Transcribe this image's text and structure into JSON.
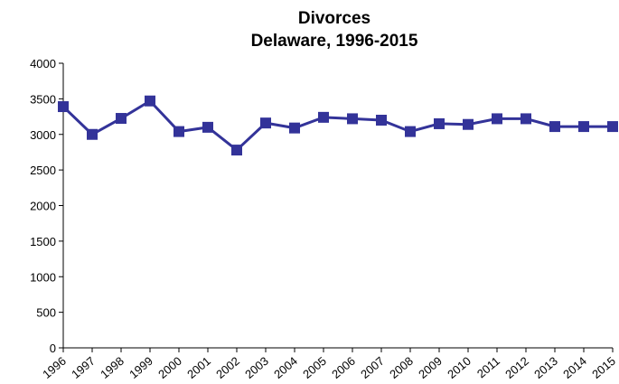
{
  "chart_data": {
    "type": "line",
    "title": "Divorces",
    "subtitle": "Delaware, 1996-2015",
    "categories": [
      "1996",
      "1997",
      "1998",
      "1999",
      "2000",
      "2001",
      "2002",
      "2003",
      "2004",
      "2005",
      "2006",
      "2007",
      "2008",
      "2009",
      "2010",
      "2011",
      "2012",
      "2013",
      "2014",
      "2015"
    ],
    "values": [
      3390,
      3000,
      3225,
      3470,
      3040,
      3100,
      2780,
      3160,
      3090,
      3240,
      3220,
      3200,
      3040,
      3150,
      3140,
      3220,
      3220,
      3110,
      3110,
      3110
    ],
    "color": "#333399",
    "ylim": [
      0,
      4000
    ],
    "yticks": [
      0,
      500,
      1000,
      1500,
      2000,
      2500,
      3000,
      3500,
      4000
    ],
    "grid": false
  }
}
